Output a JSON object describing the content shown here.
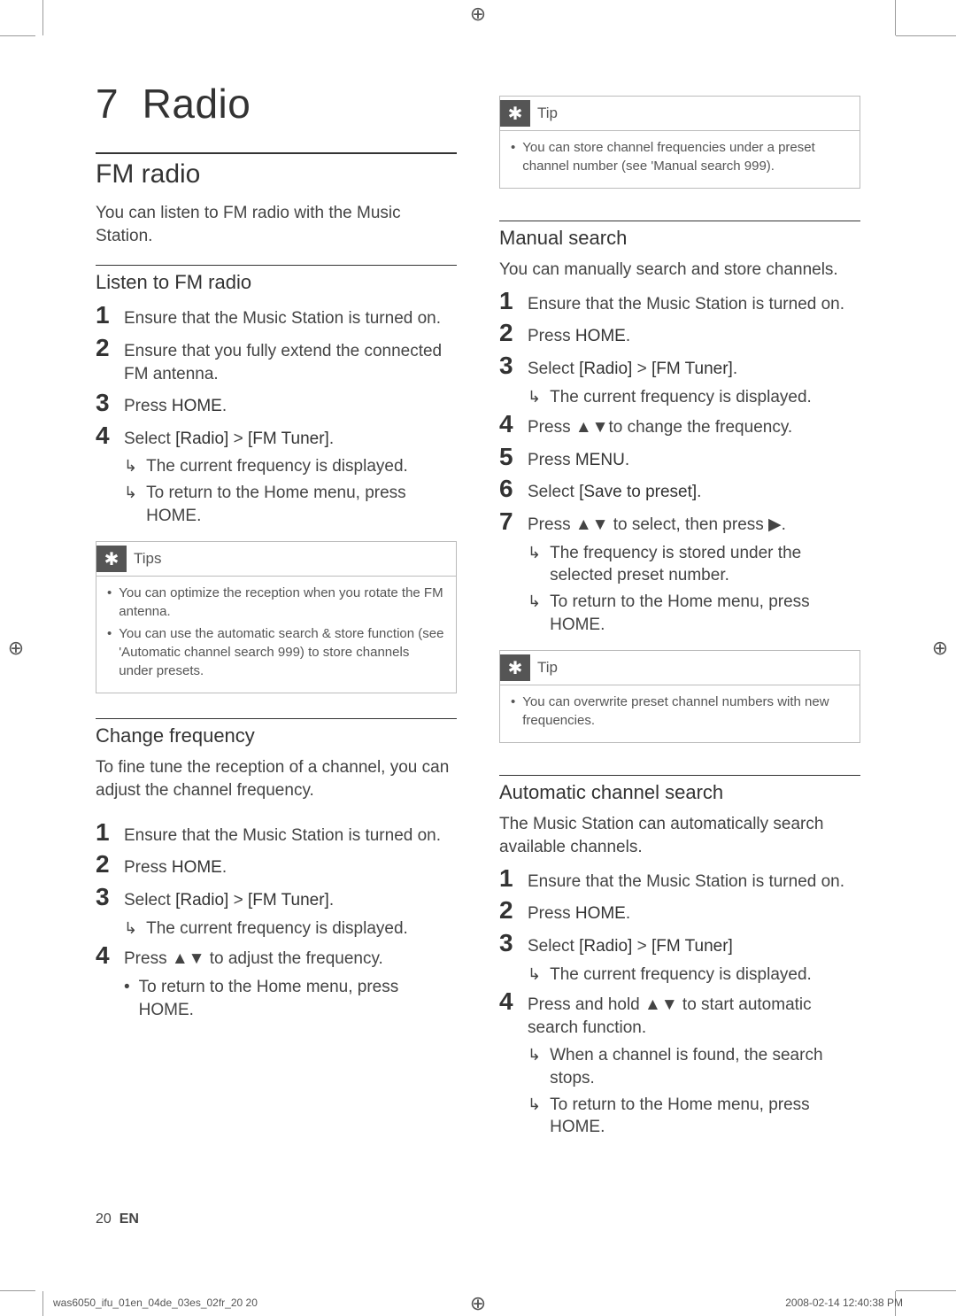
{
  "page": {
    "number": "20",
    "lang": "EN",
    "footer_file": "was6050_ifu_01en_04de_03es_02fr_20   20",
    "footer_date": "2008-02-14   12:40:38 PM"
  },
  "chapter": {
    "num": "7",
    "title": "Radio"
  },
  "left": {
    "section": "FM radio",
    "intro": "You can listen to FM radio with the Music Station.",
    "sub1": {
      "title": "Listen to FM radio",
      "steps": [
        {
          "n": "1",
          "t": "Ensure that the Music Station is turned on."
        },
        {
          "n": "2",
          "t": "Ensure that you fully extend the connected FM antenna."
        },
        {
          "n": "3",
          "t": "Press <b>HOME</b>."
        },
        {
          "n": "4",
          "t": "Select <b>[Radio]</b> > <b>[FM Tuner]</b>.",
          "results": [
            "The current frequency is displayed.",
            "To return to the Home menu, press <b>HOME</b>."
          ]
        }
      ],
      "tipLabel": "Tips",
      "tips": [
        "You can optimize the reception when you rotate the FM antenna.",
        "You can use the automatic search & store function (see 'Automatic channel search 999) to store channels under presets."
      ]
    },
    "sub2": {
      "title": "Change frequency",
      "intro": "To fine tune the reception of a channel, you can adjust the channel frequency.",
      "steps": [
        {
          "n": "1",
          "t": "Ensure that the Music Station is turned on."
        },
        {
          "n": "2",
          "t": "Press <b>HOME</b>."
        },
        {
          "n": "3",
          "t": "Select <b>[Radio]</b> > <b>[FM Tuner]</b>.",
          "results": [
            "The current frequency is displayed."
          ]
        },
        {
          "n": "4",
          "t": "Press ▲▼ to adjust the frequency.",
          "bullets": [
            "To return to the Home menu, press <b>HOME</b>."
          ]
        }
      ]
    }
  },
  "right": {
    "topTip": {
      "label": "Tip",
      "items": [
        "You can store channel frequencies under a preset channel number (see 'Manual search 999)."
      ]
    },
    "sub1": {
      "title": "Manual search",
      "intro": "You can manually search and store channels.",
      "steps": [
        {
          "n": "1",
          "t": "Ensure that the Music Station is turned on."
        },
        {
          "n": "2",
          "t": "Press <b>HOME</b>."
        },
        {
          "n": "3",
          "t": "Select <b>[Radio]</b> > <b>[FM Tuner]</b>.",
          "results": [
            "The current frequency is displayed."
          ]
        },
        {
          "n": "4",
          "t": "Press ▲▼to change the frequency."
        },
        {
          "n": "5",
          "t": "Press <b>MENU</b>."
        },
        {
          "n": "6",
          "t": "Select <b>[Save to preset]</b>."
        },
        {
          "n": "7",
          "t": "Press ▲▼ to select, then press ▶.",
          "results": [
            "The frequency is stored under the selected preset number.",
            "To return to the Home menu, press <b>HOME</b>."
          ]
        }
      ],
      "tipLabel": "Tip",
      "tips": [
        "You can overwrite preset channel numbers with new frequencies."
      ]
    },
    "sub2": {
      "title": "Automatic channel search",
      "intro": "The Music Station can automatically search available channels.",
      "steps": [
        {
          "n": "1",
          "t": "Ensure that the Music Station is turned on."
        },
        {
          "n": "2",
          "t": "Press <b>HOME</b>."
        },
        {
          "n": "3",
          "t": "Select <b>[Radio]</b> > <b>[FM Tuner]</b>",
          "results": [
            "The current frequency is displayed."
          ]
        },
        {
          "n": "4",
          "t": "Press and hold ▲▼ to start automatic search function.",
          "results": [
            "When a channel is found, the search stops.",
            "To return to the Home menu, press <b>HOME</b>."
          ]
        }
      ]
    }
  }
}
